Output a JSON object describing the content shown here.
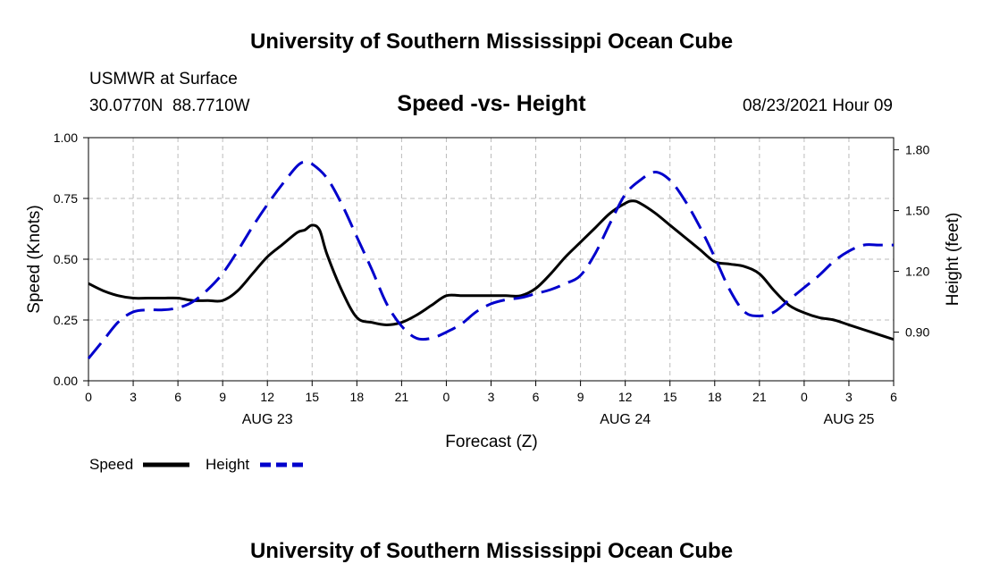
{
  "header": {
    "title": "University of Southern Mississippi Ocean Cube",
    "station": "USMWR at Surface",
    "coords": "30.0770N  88.7710W",
    "datetime": "08/23/2021 Hour 09"
  },
  "footer": {
    "title": "University of Southern Mississippi Ocean Cube"
  },
  "colors": {
    "speed": "#000000",
    "height": "#0000cc",
    "grid": "#bbbbbb"
  },
  "chart_data": {
    "type": "line",
    "title": "Speed -vs- Height",
    "xlabel": "Forecast (Z)",
    "ylabel": "Speed (Knots)",
    "y2label": "Height (feet)",
    "x_range": [
      0,
      54
    ],
    "x_ticks": [
      0,
      3,
      6,
      9,
      12,
      15,
      18,
      21,
      24,
      27,
      30,
      33,
      36,
      39,
      42,
      45,
      48,
      51,
      54
    ],
    "x_tick_labels": [
      "0",
      "3",
      "6",
      "9",
      "12",
      "15",
      "18",
      "21",
      "0",
      "3",
      "6",
      "9",
      "12",
      "15",
      "18",
      "21",
      "0",
      "3",
      "6"
    ],
    "date_labels": [
      {
        "x": 12,
        "label": "AUG 23"
      },
      {
        "x": 36,
        "label": "AUG 24"
      },
      {
        "x": 51,
        "label": "AUG 25"
      }
    ],
    "ylim": [
      0,
      1
    ],
    "y_ticks": [
      0,
      0.25,
      0.5,
      0.75,
      1.0
    ],
    "y_tick_labels": [
      "0.00",
      "0.25",
      "0.50",
      "0.75",
      "1.00"
    ],
    "y2lim": [
      0.66,
      1.86
    ],
    "y2_ticks": [
      0.9,
      1.2,
      1.5,
      1.8
    ],
    "y2_tick_labels": [
      "0.90",
      "1.20",
      "1.50",
      "1.80"
    ],
    "grid": true,
    "legend_position": "bottom-left",
    "series": [
      {
        "name": "Speed",
        "axis": "left",
        "style": "solid",
        "x": [
          0,
          1,
          2,
          3,
          4,
          5,
          6,
          7,
          8,
          9,
          10,
          11,
          12,
          13,
          14,
          14.5,
          15,
          15.5,
          16,
          17,
          18,
          19,
          20,
          21,
          22,
          23,
          24,
          25,
          26,
          27,
          28,
          29,
          30,
          31,
          32,
          33,
          34,
          35,
          36,
          36.5,
          37,
          38,
          39,
          40,
          41,
          42,
          43,
          44,
          45,
          46,
          47,
          48,
          49,
          50,
          51,
          52,
          53,
          54
        ],
        "y": [
          0.4,
          0.37,
          0.35,
          0.34,
          0.34,
          0.34,
          0.34,
          0.33,
          0.33,
          0.33,
          0.37,
          0.44,
          0.51,
          0.56,
          0.61,
          0.62,
          0.64,
          0.62,
          0.52,
          0.37,
          0.26,
          0.24,
          0.23,
          0.24,
          0.27,
          0.31,
          0.35,
          0.35,
          0.35,
          0.35,
          0.35,
          0.35,
          0.38,
          0.44,
          0.51,
          0.57,
          0.63,
          0.69,
          0.73,
          0.74,
          0.73,
          0.69,
          0.64,
          0.59,
          0.54,
          0.49,
          0.48,
          0.47,
          0.44,
          0.37,
          0.31,
          0.28,
          0.26,
          0.25,
          0.23,
          0.21,
          0.19,
          0.17
        ]
      },
      {
        "name": "Height",
        "axis": "right",
        "style": "dashed",
        "x": [
          0,
          1,
          2,
          3,
          4,
          5,
          6,
          7,
          8,
          9,
          10,
          11,
          12,
          13,
          14,
          14.5,
          15,
          16,
          17,
          18,
          19,
          20,
          21,
          22,
          23,
          24,
          25,
          26,
          27,
          28,
          29,
          30,
          31,
          32,
          33,
          34,
          35,
          36,
          37,
          38,
          39,
          40,
          41,
          42,
          43,
          44,
          45,
          46,
          47,
          48,
          49,
          50,
          51,
          52,
          53,
          54
        ],
        "y": [
          0.77,
          0.86,
          0.95,
          1.0,
          1.01,
          1.01,
          1.02,
          1.05,
          1.11,
          1.19,
          1.3,
          1.42,
          1.53,
          1.63,
          1.72,
          1.74,
          1.73,
          1.66,
          1.53,
          1.37,
          1.21,
          1.04,
          0.93,
          0.87,
          0.87,
          0.9,
          0.94,
          1.0,
          1.04,
          1.06,
          1.07,
          1.09,
          1.11,
          1.14,
          1.18,
          1.29,
          1.44,
          1.58,
          1.65,
          1.69,
          1.65,
          1.55,
          1.42,
          1.27,
          1.11,
          1.0,
          0.98,
          1.0,
          1.06,
          1.12,
          1.18,
          1.25,
          1.3,
          1.33,
          1.33,
          1.33
        ]
      }
    ]
  }
}
